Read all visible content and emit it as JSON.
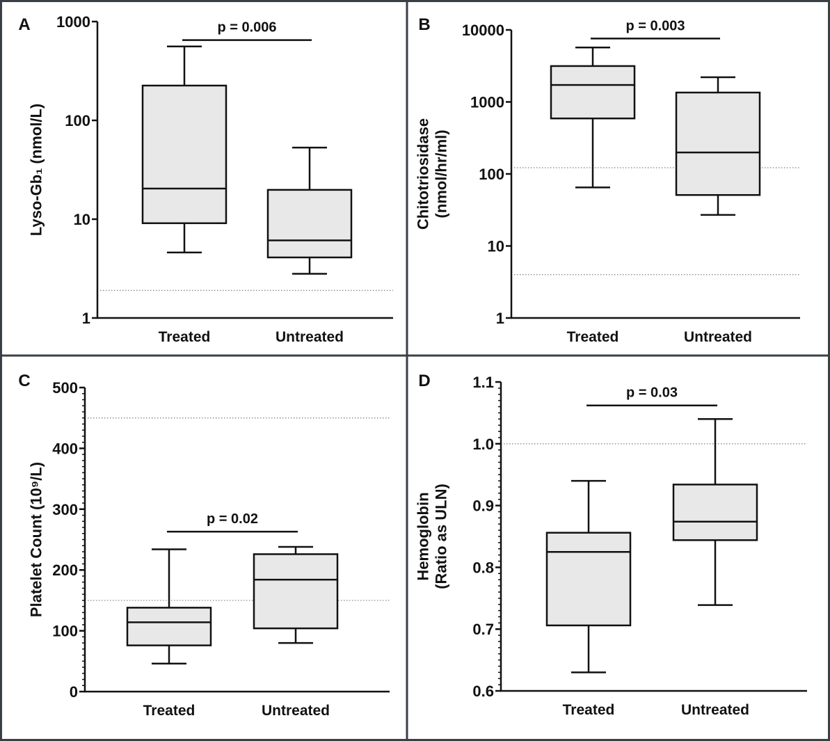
{
  "chart_data": [
    {
      "panel": "A",
      "type": "box",
      "ylabel": [
        "Lyso-Gb₁ (nmol/L)"
      ],
      "yscale": "log",
      "ylim": [
        1,
        1000
      ],
      "yticks": [
        1,
        10,
        100,
        1000
      ],
      "ytick_labels": [
        "1",
        "10",
        "100",
        "1000"
      ],
      "minor_ticks": false,
      "categories": [
        "Treated",
        "Untreated"
      ],
      "boxes": [
        {
          "min": 4.6,
          "q1": 9.1,
          "median": 20.4,
          "q3": 225,
          "max": 560
        },
        {
          "min": 2.8,
          "q1": 4.1,
          "median": 6.1,
          "q3": 19.8,
          "max": 53
        }
      ],
      "reference_lines": [
        1.9
      ],
      "annotation": {
        "text": "p = 0.006",
        "y": 650
      }
    },
    {
      "panel": "B",
      "type": "box",
      "ylabel": [
        "Chitotriosidase",
        "(nmol/hr/ml)"
      ],
      "yscale": "log",
      "ylim": [
        1,
        10000
      ],
      "yticks": [
        1,
        10,
        100,
        1000,
        10000
      ],
      "ytick_labels": [
        "1",
        "10",
        "100",
        "1000",
        "10000"
      ],
      "minor_ticks": false,
      "categories": [
        "Treated",
        "Untreated"
      ],
      "boxes": [
        {
          "min": 65,
          "q1": 590,
          "median": 1720,
          "q3": 3150,
          "max": 5700
        },
        {
          "min": 27,
          "q1": 51,
          "median": 199,
          "q3": 1350,
          "max": 2200
        }
      ],
      "reference_lines": [
        122,
        4
      ],
      "annotation": {
        "text": "p = 0.003",
        "y": 7600
      }
    },
    {
      "panel": "C",
      "type": "box",
      "ylabel": [
        "Platelet Count (10⁹/L)"
      ],
      "yscale": "linear",
      "ylim": [
        0,
        500
      ],
      "yticks": [
        0,
        100,
        200,
        300,
        400,
        500
      ],
      "ytick_labels": [
        "0",
        "100",
        "200",
        "300",
        "400",
        "500"
      ],
      "minor_ticks": true,
      "categories": [
        "Treated",
        "Untreated"
      ],
      "boxes": [
        {
          "min": 46,
          "q1": 76,
          "median": 114,
          "q3": 138,
          "max": 234
        },
        {
          "min": 80,
          "q1": 104,
          "median": 184,
          "q3": 226,
          "max": 238
        }
      ],
      "reference_lines": [
        450,
        150
      ],
      "annotation": {
        "text": "p = 0.02",
        "y": 263
      }
    },
    {
      "panel": "D",
      "type": "box",
      "ylabel": [
        "Hemoglobin",
        "(Ratio as ULN)"
      ],
      "yscale": "linear",
      "ylim": [
        0.6,
        1.1
      ],
      "yticks": [
        0.6,
        0.7,
        0.8,
        0.9,
        1.0,
        1.1
      ],
      "ytick_labels": [
        "0.6",
        "0.7",
        "0.8",
        "0.9",
        "1.0",
        "1.1"
      ],
      "minor_ticks": true,
      "categories": [
        "Treated",
        "Untreated"
      ],
      "boxes": [
        {
          "min": 0.63,
          "q1": 0.706,
          "median": 0.825,
          "q3": 0.856,
          "max": 0.94
        },
        {
          "min": 0.739,
          "q1": 0.844,
          "median": 0.874,
          "q3": 0.934,
          "max": 1.04
        }
      ],
      "reference_lines": [
        1.0
      ],
      "annotation": {
        "text": "p = 0.03",
        "y": 1.062
      }
    }
  ],
  "colors": {
    "box_fill": "#e8e8e8",
    "stroke": "#111111",
    "reference_line": "#888888",
    "frame": "#3a3f45"
  }
}
